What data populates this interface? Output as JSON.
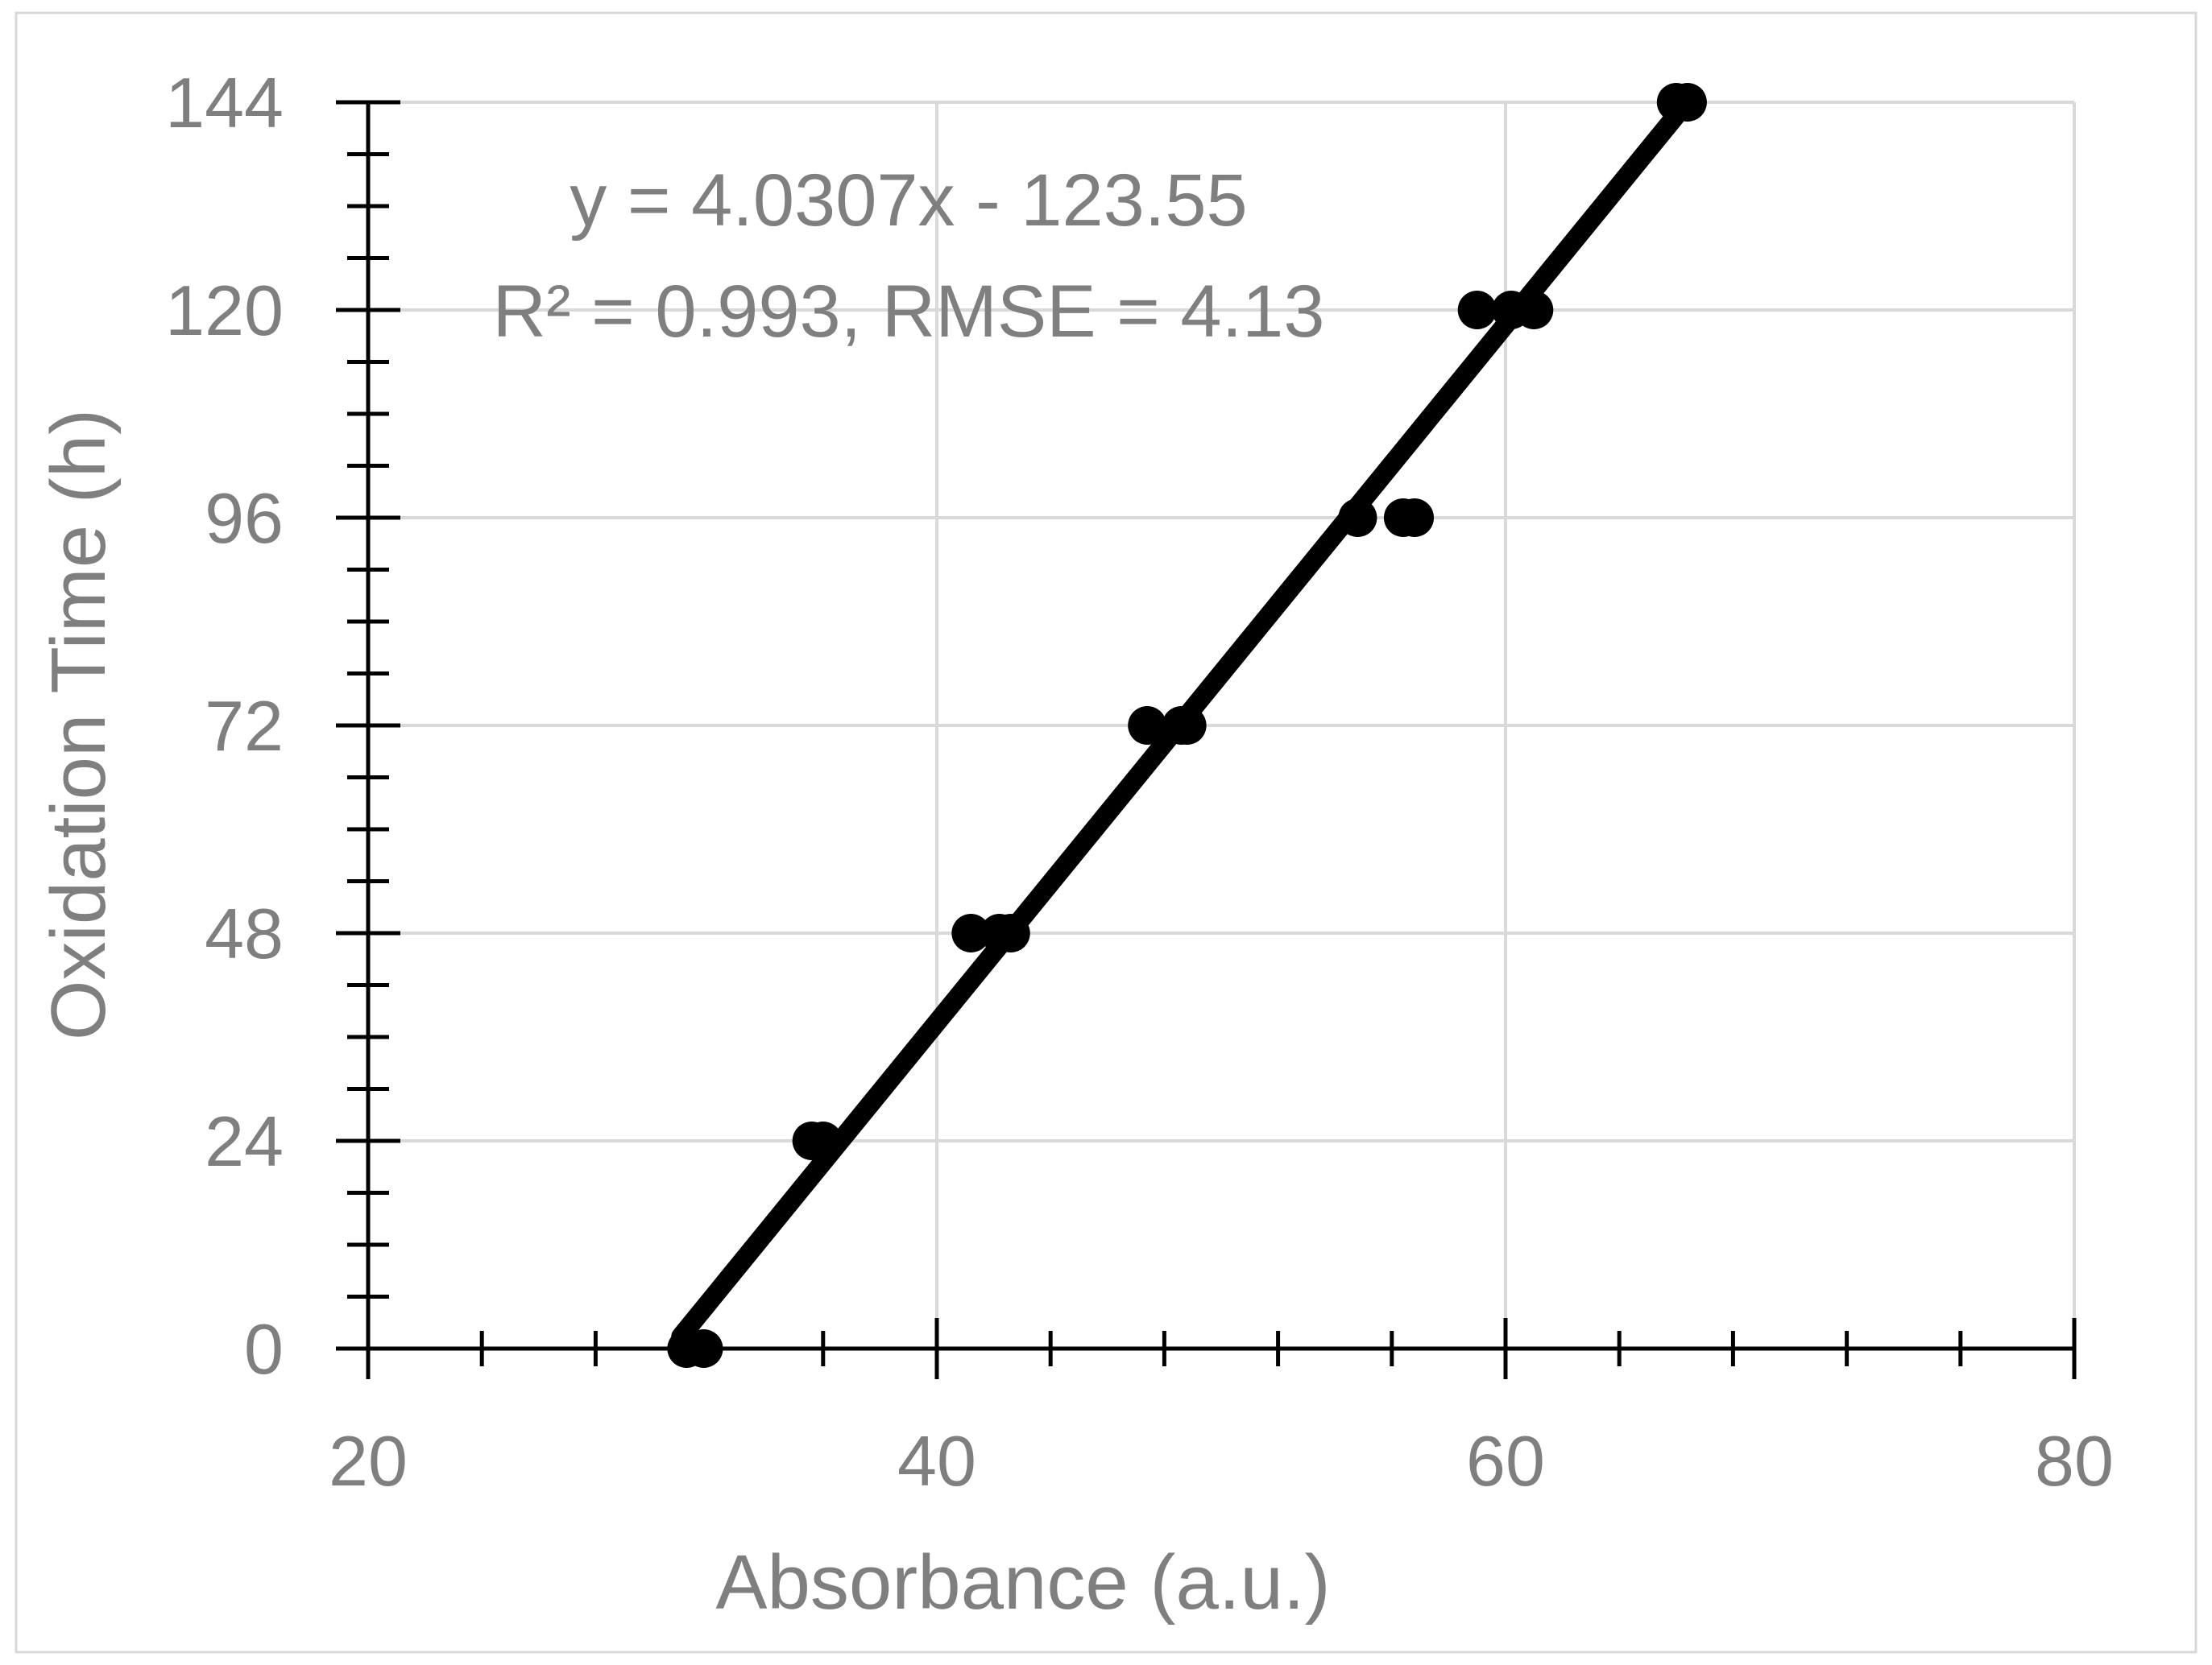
{
  "chart_data": {
    "type": "scatter",
    "title": "",
    "xlabel": "Absorbance (a.u.)",
    "ylabel": "Oxidation Time (h)",
    "xlim": [
      20,
      80
    ],
    "ylim": [
      0,
      144
    ],
    "x_ticks": [
      20,
      40,
      60,
      80
    ],
    "y_ticks": [
      0,
      24,
      48,
      72,
      96,
      120,
      144
    ],
    "x_tick_labels": [
      "20",
      "40",
      "60",
      "80"
    ],
    "y_tick_labels": [
      "0",
      "24",
      "48",
      "72",
      "96",
      "120",
      "144"
    ],
    "x_minor_step": 4,
    "y_minor_step": 6,
    "grid": true,
    "legend": "none",
    "series": [
      {
        "points": [
          {
            "x": 31.2,
            "y": 0
          },
          {
            "x": 31.8,
            "y": 0
          },
          {
            "x": 35.6,
            "y": 24
          },
          {
            "x": 36.0,
            "y": 24
          },
          {
            "x": 41.2,
            "y": 48
          },
          {
            "x": 42.2,
            "y": 48
          },
          {
            "x": 42.6,
            "y": 48
          },
          {
            "x": 47.4,
            "y": 72
          },
          {
            "x": 48.6,
            "y": 72
          },
          {
            "x": 48.8,
            "y": 72
          },
          {
            "x": 54.8,
            "y": 96
          },
          {
            "x": 56.4,
            "y": 96
          },
          {
            "x": 56.8,
            "y": 96
          },
          {
            "x": 59.0,
            "y": 120
          },
          {
            "x": 60.2,
            "y": 120
          },
          {
            "x": 61.0,
            "y": 120
          },
          {
            "x": 66.0,
            "y": 144
          },
          {
            "x": 66.4,
            "y": 144
          }
        ]
      }
    ],
    "trendline": {
      "slope": 4.0307,
      "intercept": -123.55,
      "x_range": [
        31.0,
        66.3
      ]
    },
    "annotations": [
      "y = 4.0307x - 123.55",
      "R² = 0.993, RMSE = 4.13"
    ],
    "colors": {
      "points": "#000000",
      "trendline": "#000000",
      "grid": "#d9d9d9",
      "axis": "#000000",
      "text": "#7f7f7f"
    }
  }
}
